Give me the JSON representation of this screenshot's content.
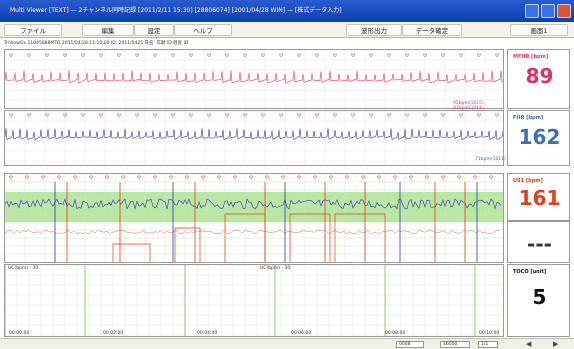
{
  "window": {
    "title": "Multi Viewer [TEXT] — 2チャンネル同時記録 [2011/2/11 15:30] [28806074] [2001/04/28 WIN] — [株式データ入力]"
  },
  "menu": {
    "items": [
      "ファイル",
      "編集",
      "設定",
      "ヘルプ",
      "波形出力",
      "データ確定",
      "画面1"
    ]
  },
  "info": {
    "text": "TriViewOx 11045888MTD   2011/04/28   11:10:00   ID: 2011/0425   氏名:   年齢 ID   経産 ID"
  },
  "panels": {
    "mfhr": {
      "label": "MFHR [bpm]",
      "value": "89",
      "value_color": "#e0306a",
      "trace_color": "#e23b70",
      "footer": "95bpm(1015)  91bpm(1011)"
    },
    "fhr": {
      "label": "FHR [bpm]",
      "value": "162",
      "value_color": "#3a6fb8",
      "trace_color": "#2b3ea8",
      "footer": "71bpm(1011)"
    },
    "us1": {
      "label": "US1 [bpm]",
      "value": "161",
      "value_color": "#e2401a",
      "value2": "---",
      "trace_color": "#2b3ea8",
      "band_color": "#b8e6a3"
    },
    "toco": {
      "label": "TOCO [unit]",
      "value": "5",
      "value_color": "#111111",
      "scale_left": "UC(bpm) - 30",
      "scale_mid": "UC(bpm) - 30"
    }
  },
  "time_axis": {
    "ticks": [
      "00:00:00",
      "00:02:00",
      "00:04:00",
      "00:06:00",
      "00:08:00",
      "00:10:00"
    ]
  },
  "bottom": {
    "field1": "0008",
    "field2": "16000",
    "field3": "1/1",
    "prev": "◀",
    "next": "▶"
  },
  "colors": {
    "grid": "#d9ecd0",
    "pink_grid": "#f6dbe6"
  }
}
